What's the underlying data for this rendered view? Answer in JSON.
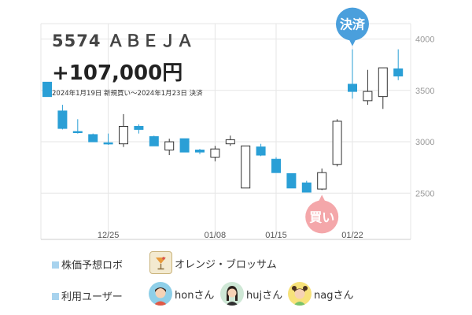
{
  "header": {
    "ticker": "5574 ＡＢＥＪＡ",
    "profit": "+107,000円",
    "trade_note": "2024年1月19日 新規買い〜2024年1月23日 決済"
  },
  "markers": {
    "buy": "買い",
    "settle": "決済"
  },
  "robot": {
    "label": "株価予想ロボ",
    "name": "オレンジ・ブロッサム"
  },
  "users": {
    "label": "利用ユーザー",
    "names": [
      "honさん",
      "hujさん",
      "nagさん"
    ]
  },
  "colors": {
    "up": "#ffffff",
    "down": "#2a9fd6",
    "buy_marker": "#f4a7aa",
    "settle_marker": "#4a9fdc",
    "grid": "#e6e6e6"
  },
  "chart_data": {
    "type": "candlestick",
    "ylim": [
      2050,
      4150
    ],
    "yticks": [
      2500,
      3000,
      3500,
      4000
    ],
    "xtick_labels": [
      "12/25",
      "01/08",
      "01/15",
      "01/22"
    ],
    "xtick_index": [
      4,
      11,
      15,
      20
    ],
    "candles": [
      {
        "o": 3580,
        "h": 3580,
        "l": 3440,
        "c": 3440
      },
      {
        "o": 3300,
        "h": 3360,
        "l": 3120,
        "c": 3130
      },
      {
        "o": 3100,
        "h": 3220,
        "l": 3080,
        "c": 3090
      },
      {
        "o": 3070,
        "h": 3080,
        "l": 3000,
        "c": 3000
      },
      {
        "o": 2990,
        "h": 3080,
        "l": 2970,
        "c": 2980
      },
      {
        "o": 2980,
        "h": 3270,
        "l": 2950,
        "c": 3150
      },
      {
        "o": 3150,
        "h": 3170,
        "l": 3080,
        "c": 3120
      },
      {
        "o": 3050,
        "h": 3060,
        "l": 2960,
        "c": 2960
      },
      {
        "o": 2920,
        "h": 3030,
        "l": 2870,
        "c": 3000
      },
      {
        "o": 3030,
        "h": 3030,
        "l": 2900,
        "c": 2900
      },
      {
        "o": 2920,
        "h": 2930,
        "l": 2880,
        "c": 2900
      },
      {
        "o": 2850,
        "h": 2960,
        "l": 2810,
        "c": 2930
      },
      {
        "o": 2980,
        "h": 3060,
        "l": 2960,
        "c": 3020
      },
      {
        "o": 2550,
        "h": 2960,
        "l": 2550,
        "c": 2960
      },
      {
        "o": 2950,
        "h": 2980,
        "l": 2860,
        "c": 2870
      },
      {
        "o": 2830,
        "h": 2850,
        "l": 2700,
        "c": 2700
      },
      {
        "o": 2690,
        "h": 2690,
        "l": 2550,
        "c": 2550
      },
      {
        "o": 2600,
        "h": 2620,
        "l": 2510,
        "c": 2510
      },
      {
        "o": 2540,
        "h": 2740,
        "l": 2530,
        "c": 2700
      },
      {
        "o": 2780,
        "h": 3220,
        "l": 2760,
        "c": 3200
      },
      {
        "o": 3560,
        "h": 3900,
        "l": 3420,
        "c": 3490
      },
      {
        "o": 3400,
        "h": 3700,
        "l": 3360,
        "c": 3490
      },
      {
        "o": 3440,
        "h": 3720,
        "l": 3320,
        "c": 3720
      },
      {
        "o": 3710,
        "h": 3900,
        "l": 3600,
        "c": 3640
      }
    ],
    "buy_index": 18,
    "settle_index": 20
  }
}
